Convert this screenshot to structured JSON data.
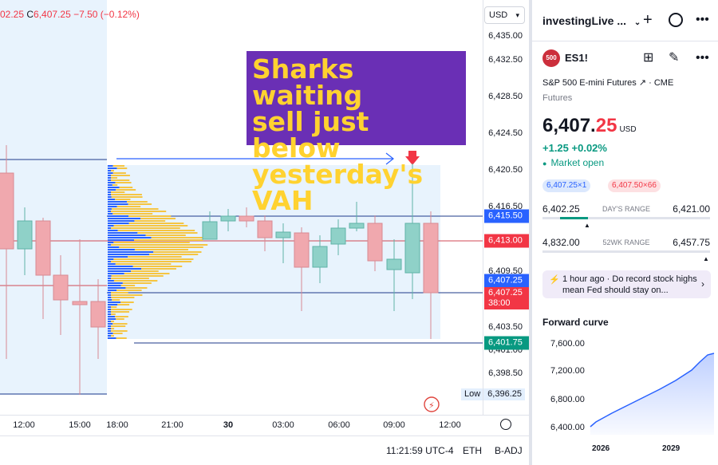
{
  "ohlc": {
    "prefix": "02.25",
    "c_label": "C",
    "close": "6,407.25",
    "change": "−7.50 (−0.12%)"
  },
  "currency_button": "USD",
  "annotation": {
    "line1": "Sharks waiting",
    "line2": "sell just below",
    "line3": "yesterday's VAH"
  },
  "price_axis": {
    "labels": [
      "6,435.00",
      "6,432.50",
      "6,428.50",
      "6,424.50",
      "6,420.50",
      "6,416.50",
      "6,409.50",
      "6,403.50",
      "6,401.00",
      "6,398.50"
    ]
  },
  "price_tags": [
    {
      "value": "6,415.50",
      "color": "#2962ff"
    },
    {
      "value": "6,413.00",
      "color": "#f23645"
    },
    {
      "value": "6,407.25",
      "color": "#2962ff"
    },
    {
      "value": "6,407.25",
      "color": "#f23645",
      "sub": "38:00"
    },
    {
      "value": "6,401.75",
      "color": "#089981"
    }
  ],
  "low_badge": {
    "label": "Low",
    "value": "6,396.25"
  },
  "time_axis": [
    "12:00",
    "15:00",
    "18:00",
    "21:00",
    "30",
    "03:00",
    "06:00",
    "09:00",
    "12:00"
  ],
  "status_bar": {
    "time": "11:21:59 UTC-4",
    "session": "ETH",
    "adj": "B-ADJ"
  },
  "panel": {
    "title": "investingLive ...",
    "symbol": {
      "badge": "500",
      "ticker": "ES1!",
      "description": "S&P 500 E-mini Futures",
      "exchange": "CME",
      "type": "Futures"
    },
    "price": {
      "main": "6,407.",
      "decimals": "25",
      "currency": "USD"
    },
    "change": "+1.25  +0.02%",
    "market_status": "Market open",
    "bid": "6,407.25×1",
    "ask": "6,407.50×66",
    "days_range": {
      "low": "6,402.25",
      "label": "DAY'S RANGE",
      "high": "6,421.00"
    },
    "week52_range": {
      "low": "4,832.00",
      "label": "52WK RANGE",
      "high": "6,457.75"
    },
    "news": {
      "text": "1 hour ago  ·  Do record stock highs mean Fed should stay on..."
    },
    "forward_curve": {
      "title": "Forward curve",
      "y_labels": [
        "7,600.00",
        "7,200.00",
        "6,800.00",
        "6,400.00"
      ],
      "x_labels": [
        "2026",
        "2029"
      ]
    }
  },
  "colors": {
    "up": "#089981",
    "down": "#f23645",
    "up_candle": "#8fd1c8",
    "down_candle": "#f0a8ae",
    "accent": "#2962ff"
  }
}
